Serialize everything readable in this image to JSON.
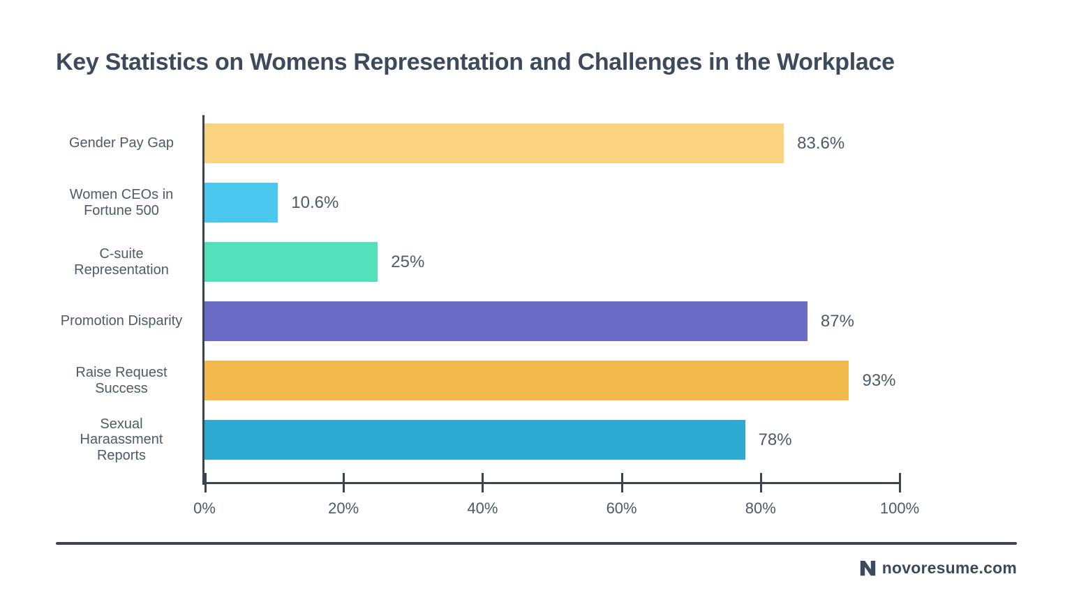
{
  "title": "Key Statistics on Womens Representation and Challenges in the Workplace",
  "chart_data": {
    "type": "bar",
    "orientation": "horizontal",
    "title": "Key Statistics on Womens Representation and Challenges in the Workplace",
    "categories": [
      "Gender Pay Gap",
      "Women CEOs in\nFortune 500",
      "C-suite\nRepresentation",
      "Promotion Disparity",
      "Raise Request\nSuccess",
      "Sexual\nHaraassment\nReports"
    ],
    "values": [
      83.6,
      10.6,
      25,
      87,
      93,
      78
    ],
    "value_labels": [
      "83.6%",
      "10.6%",
      "25%",
      "87%",
      "93%",
      "78%"
    ],
    "bar_colors": [
      "#fbd380",
      "#4bc8ee",
      "#51e0b7",
      "#6a6bc4",
      "#f2b94d",
      "#2ea9d1"
    ],
    "x_tick_labels": [
      "0%",
      "20%",
      "40%",
      "60%",
      "80%",
      "100%"
    ],
    "xlim": [
      0,
      100
    ],
    "xlabel": "",
    "ylabel": "",
    "grid": false,
    "legend": false
  },
  "footer": {
    "brand": "novoresume.com",
    "logo_icon": "novoresume-n-icon"
  },
  "colors": {
    "title": "#3d4a5c",
    "label": "#4e5a68",
    "axis": "#3a4551",
    "background": "#ffffff"
  }
}
